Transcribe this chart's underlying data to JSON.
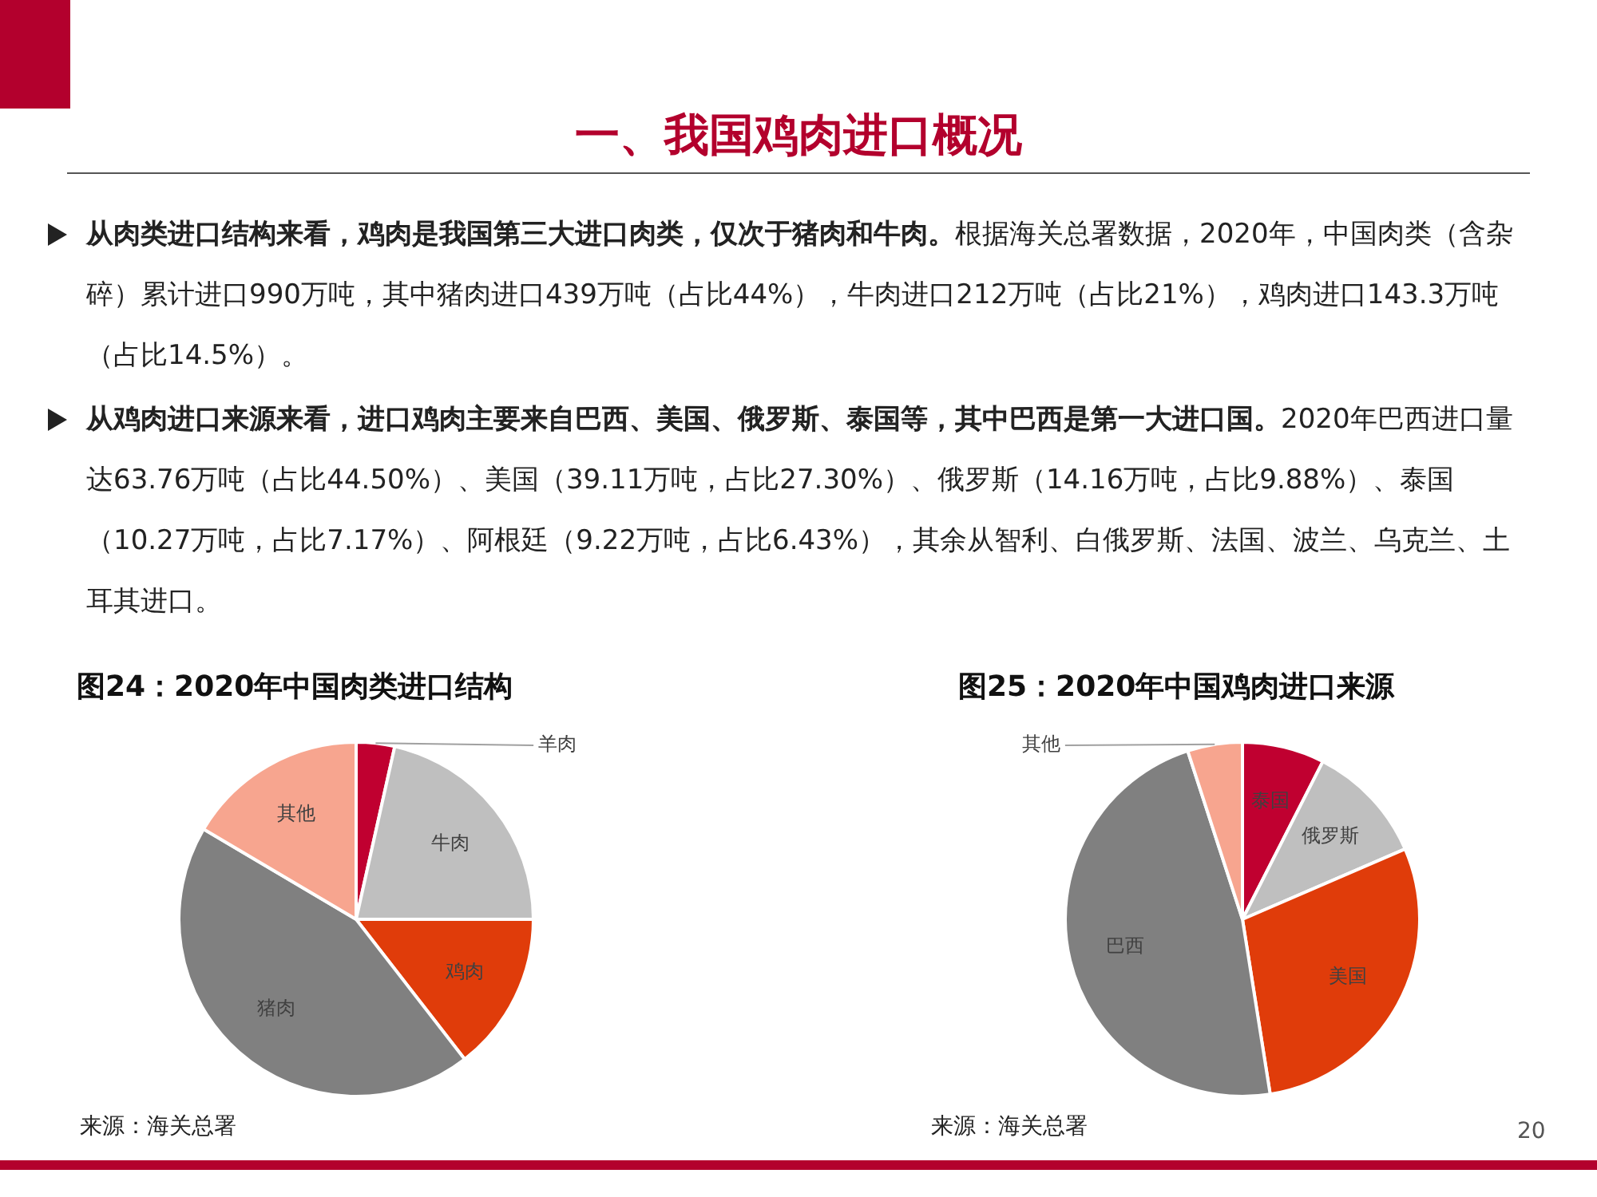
{
  "chart_data": [
    {
      "type": "pie",
      "title": "图24：2020年中国肉类进口结构",
      "categories": [
        "羊肉",
        "牛肉",
        "鸡肉",
        "猪肉",
        "其他"
      ],
      "values": [
        3.5,
        21.5,
        14.5,
        44,
        16.5
      ],
      "colors": [
        "#c00030",
        "#bfbfbf",
        "#e03c0a",
        "#808080",
        "#f7a58f"
      ],
      "legend": false,
      "annotations": [
        "一、我国鸡肉进口概况",
        "从肉类进口结构来看，鸡肉是我国第三大进口肉类，仅次于猪肉和牛肉。",
        "根据海关总署数据，2020年，中国肉类（含杂碎）累计进口990万吨，其中猪肉进口439万吨（占比44%），牛肉进口212万吨（占比21%），鸡肉进口143.3万吨（占比14.5%）。",
        "从鸡肉进口来源来看，进口鸡肉主要来自巴西、美国、俄罗斯、泰国等，其中巴西是第一大进口国。",
        "2020年巴西进口量达63.76万吨（占比44.50%）、美国（39.11万吨，占比27.30%）、俄罗斯（14.16万吨，占比9.88%）、泰国（10.27万吨，占比7.17%）、阿根廷（9.22万吨，占比6.43%），其余从智利、白俄罗斯、法国、波兰、乌克兰、土耳其进口。",
        "来源：海关总署"
      ]
    },
    {
      "type": "pie",
      "title": "图25：2020年中国鸡肉进口来源",
      "categories": [
        "泰国",
        "俄罗斯",
        "美国",
        "巴西",
        "其他"
      ],
      "values": [
        7.5,
        11,
        29,
        47.5,
        5
      ],
      "colors": [
        "#c00030",
        "#bfbfbf",
        "#e03c0a",
        "#808080",
        "#f7a58f"
      ],
      "legend": false,
      "annotations": [
        "来源：海关总署",
        "20"
      ]
    }
  ]
}
